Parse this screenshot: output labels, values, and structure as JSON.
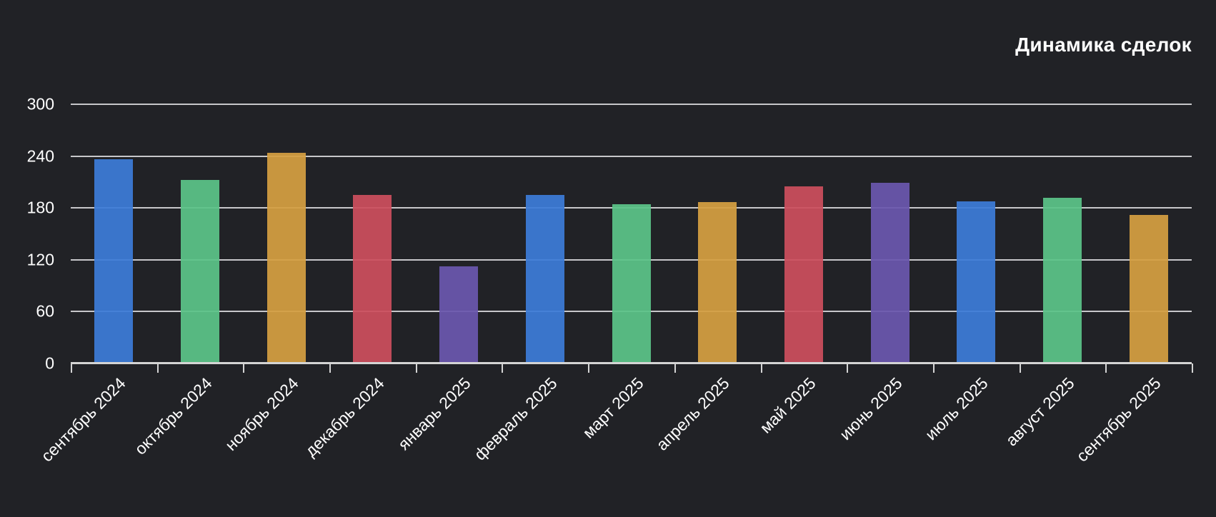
{
  "chart_data": {
    "type": "bar",
    "title": "Динамика сделок",
    "categories": [
      "сентябрь 2024",
      "октябрь 2024",
      "ноябрь 2024",
      "декабрь 2024",
      "январь 2025",
      "февраль 2025",
      "март 2025",
      "апрель 2025",
      "май 2025",
      "июнь 2025",
      "июль 2025",
      "август 2025",
      "сентябрь 2025"
    ],
    "values": [
      236,
      212,
      244,
      195,
      112,
      195,
      184,
      187,
      205,
      209,
      188,
      192,
      172
    ],
    "bar_colors": [
      "#3c7cd8",
      "#5bc489",
      "#d59f42",
      "#cc4f5e",
      "#6b57ae",
      "#3c7cd8",
      "#5bc489",
      "#d59f42",
      "#cc4f5e",
      "#6b57ae",
      "#3c7cd8",
      "#5bc489",
      "#d59f42"
    ],
    "palette": {
      "blue": "#3c7cd8",
      "green": "#5bc489",
      "orange": "#d59f42",
      "red": "#cc4f5e",
      "purple": "#6b57ae"
    },
    "xlabel": "",
    "ylabel": "",
    "ylim": [
      0,
      300
    ],
    "y_ticks": [
      0,
      60,
      120,
      180,
      240,
      300
    ],
    "grid": true,
    "legend": "none",
    "x_label_rotation_deg": -45
  },
  "theme": {
    "background": "#212226",
    "text_color": "#ffffff",
    "grid_color": "#c7c7ca",
    "axis_color": "#d4d4d4"
  }
}
